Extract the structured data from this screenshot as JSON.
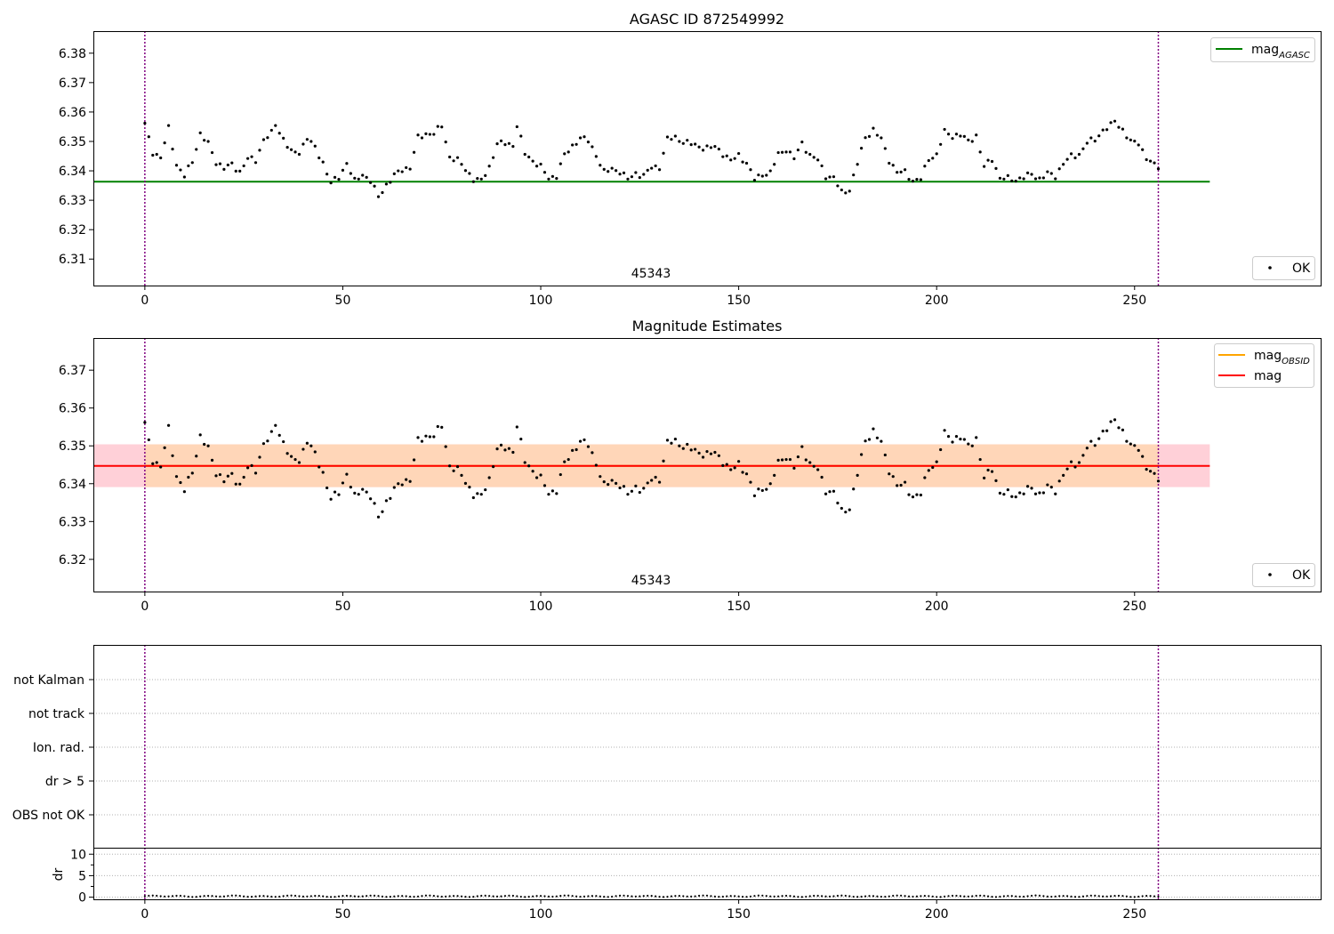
{
  "chart_data": [
    {
      "panel": "top",
      "type": "scatter",
      "title": "AGASC ID 872549992",
      "annotation": "45343",
      "x_range": [
        -13,
        297
      ],
      "y_range": [
        6.301,
        6.3875
      ],
      "x_ticks": [
        0,
        50,
        100,
        150,
        200,
        250
      ],
      "y_ticks": [
        6.31,
        6.32,
        6.33,
        6.34,
        6.35,
        6.36,
        6.37,
        6.38
      ],
      "y_tick_labels": [
        "6.31",
        "6.32",
        "6.33",
        "6.34",
        "6.35",
        "6.36",
        "6.37",
        "6.38"
      ],
      "vlines": [
        0,
        256
      ],
      "hlines": [
        {
          "name": "mag",
          "sub": "AGASC",
          "y": 6.3363,
          "x_range": [
            -13,
            269
          ],
          "color": "#008000"
        }
      ],
      "legend_lines": [
        {
          "name": "mag",
          "sub": "AGASC",
          "color": "#008000",
          "position": "upper right"
        }
      ],
      "legend_points": [
        {
          "name": "OK",
          "color": "#000000",
          "position": "lower right"
        }
      ],
      "series": [
        {
          "name": "OK",
          "x_range": [
            0,
            256
          ],
          "count": 257
        }
      ]
    },
    {
      "panel": "middle",
      "type": "scatter",
      "title": "Magnitude Estimates",
      "annotation": "45343",
      "x_range": [
        -13,
        297
      ],
      "y_range": [
        6.3115,
        6.3785
      ],
      "x_ticks": [
        0,
        50,
        100,
        150,
        200,
        250
      ],
      "y_ticks": [
        6.32,
        6.33,
        6.34,
        6.35,
        6.36,
        6.37
      ],
      "y_tick_labels": [
        "6.32",
        "6.33",
        "6.34",
        "6.35",
        "6.36",
        "6.37"
      ],
      "vlines": [
        0,
        256
      ],
      "bands": [
        {
          "y0": 6.3391,
          "y1": 6.3504,
          "x_range": [
            -13,
            269
          ],
          "color": "#ffd0d8"
        },
        {
          "y0": 6.3391,
          "y1": 6.3504,
          "x_range": [
            0,
            256
          ],
          "color": "#ffd6b8"
        }
      ],
      "hlines": [
        {
          "name": "mag",
          "sub": "OBSID",
          "y": 6.3447,
          "x_range": [
            0,
            256
          ],
          "color": "#ffa500"
        },
        {
          "name": "mag",
          "sub": "",
          "y": 6.3447,
          "x_range": [
            -13,
            269
          ],
          "color": "#ff0000"
        }
      ],
      "legend_lines": [
        {
          "name": "mag",
          "sub": "OBSID",
          "color": "#ffa500",
          "position": "upper right"
        },
        {
          "name": "mag",
          "sub": "",
          "color": "#ff0000",
          "position": "upper right"
        }
      ],
      "legend_points": [
        {
          "name": "OK",
          "color": "#000000",
          "position": "lower right"
        }
      ],
      "series": [
        {
          "name": "OK",
          "x_range": [
            0,
            256
          ],
          "count": 257
        }
      ]
    },
    {
      "panel": "flags",
      "type": "table",
      "x_range": [
        -13,
        297
      ],
      "categories": [
        "not Kalman",
        "not track",
        "Ion. rad.",
        "dr > 5",
        "OBS not OK"
      ],
      "flagged_points": [],
      "vlines": [
        0,
        256
      ],
      "grid": true
    },
    {
      "panel": "dr",
      "type": "scatter",
      "ylabel": "dr",
      "x_range": [
        -13,
        297
      ],
      "y_range": [
        -0.5,
        11.5
      ],
      "x_ticks": [
        0,
        50,
        100,
        150,
        200,
        250
      ],
      "y_ticks": [
        0,
        5,
        10
      ],
      "y_tick_labels": [
        "0",
        "5",
        "10"
      ],
      "vlines": [
        0,
        256
      ],
      "grid": true,
      "series": [
        {
          "name": "dr",
          "x_range": [
            0,
            256
          ],
          "count": 257,
          "typical_value": 0.2
        }
      ]
    }
  ],
  "mag_anchors": [
    [
      0,
      6.3558
    ],
    [
      2,
      6.3463
    ],
    [
      4,
      6.3444
    ],
    [
      6,
      6.3545
    ],
    [
      8,
      6.342
    ],
    [
      10,
      6.3382
    ],
    [
      12,
      6.3433
    ],
    [
      14,
      6.3525
    ],
    [
      16,
      6.3492
    ],
    [
      18,
      6.343
    ],
    [
      20,
      6.3409
    ],
    [
      22,
      6.3421
    ],
    [
      24,
      6.3397
    ],
    [
      26,
      6.3441
    ],
    [
      28,
      6.3436
    ],
    [
      30,
      6.3505
    ],
    [
      32,
      6.3528
    ],
    [
      33,
      6.3558
    ],
    [
      35,
      6.3508
    ],
    [
      37,
      6.3463
    ],
    [
      39,
      6.3463
    ],
    [
      41,
      6.3512
    ],
    [
      43,
      6.3478
    ],
    [
      45,
      6.3428
    ],
    [
      47,
      6.3358
    ],
    [
      49,
      6.3378
    ],
    [
      51,
      6.3426
    ],
    [
      53,
      6.3364
    ],
    [
      55,
      6.3388
    ],
    [
      57,
      6.3366
    ],
    [
      59,
      6.3311
    ],
    [
      61,
      6.3352
    ],
    [
      63,
      6.3384
    ],
    [
      65,
      6.3404
    ],
    [
      67,
      6.3412
    ],
    [
      69,
      6.3512
    ],
    [
      71,
      6.3525
    ],
    [
      73,
      6.3528
    ],
    [
      75,
      6.3552
    ],
    [
      77,
      6.3447
    ],
    [
      79,
      6.3436
    ],
    [
      81,
      6.3405
    ],
    [
      83,
      6.3371
    ],
    [
      85,
      6.3366
    ],
    [
      87,
      6.3413
    ],
    [
      89,
      6.3492
    ],
    [
      91,
      6.3494
    ],
    [
      93,
      6.3487
    ],
    [
      94,
      6.3555
    ],
    [
      96,
      6.3459
    ],
    [
      98,
      6.3434
    ],
    [
      100,
      6.3414
    ],
    [
      102,
      6.3374
    ],
    [
      104,
      6.3384
    ],
    [
      106,
      6.3453
    ],
    [
      108,
      6.3484
    ],
    [
      110,
      6.3512
    ],
    [
      112,
      6.3502
    ],
    [
      114,
      6.3454
    ],
    [
      116,
      6.3395
    ],
    [
      118,
      6.3407
    ],
    [
      120,
      6.3398
    ],
    [
      122,
      6.3371
    ],
    [
      124,
      6.3391
    ],
    [
      126,
      6.3383
    ],
    [
      128,
      6.3412
    ],
    [
      130,
      6.3413
    ],
    [
      132,
      6.3508
    ],
    [
      134,
      6.3513
    ],
    [
      136,
      6.3498
    ],
    [
      138,
      6.3492
    ],
    [
      140,
      6.3482
    ],
    [
      142,
      6.3477
    ],
    [
      144,
      6.3482
    ],
    [
      146,
      6.3459
    ],
    [
      148,
      6.3434
    ],
    [
      150,
      6.3453
    ],
    [
      152,
      6.3426
    ],
    [
      154,
      6.3371
    ],
    [
      156,
      6.3388
    ],
    [
      158,
      6.3393
    ],
    [
      160,
      6.3456
    ],
    [
      162,
      6.3473
    ],
    [
      164,
      6.3442
    ],
    [
      166,
      6.3495
    ],
    [
      168,
      6.3452
    ],
    [
      170,
      6.3437
    ],
    [
      172,
      6.3383
    ],
    [
      174,
      6.3376
    ],
    [
      176,
      6.3327
    ],
    [
      178,
      6.3336
    ],
    [
      180,
      6.3425
    ],
    [
      182,
      6.3514
    ],
    [
      184,
      6.3539
    ],
    [
      186,
      6.3508
    ],
    [
      188,
      6.3437
    ],
    [
      190,
      6.3395
    ],
    [
      192,
      6.3396
    ],
    [
      194,
      6.3366
    ],
    [
      196,
      6.3372
    ],
    [
      198,
      6.3441
    ],
    [
      200,
      6.3454
    ],
    [
      202,
      6.3533
    ],
    [
      204,
      6.3518
    ],
    [
      206,
      6.3522
    ],
    [
      208,
      6.3501
    ],
    [
      210,
      6.3519
    ],
    [
      212,
      6.3413
    ],
    [
      214,
      6.3441
    ],
    [
      216,
      6.3375
    ],
    [
      218,
      6.3374
    ],
    [
      220,
      6.3369
    ],
    [
      222,
      6.3378
    ],
    [
      224,
      6.3389
    ],
    [
      226,
      6.3372
    ],
    [
      228,
      6.3391
    ],
    [
      230,
      6.3382
    ],
    [
      232,
      6.3426
    ],
    [
      234,
      6.3449
    ],
    [
      236,
      6.3456
    ],
    [
      238,
      6.3496
    ],
    [
      240,
      6.3506
    ],
    [
      242,
      6.3538
    ],
    [
      244,
      6.3554
    ],
    [
      245,
      6.3569
    ],
    [
      247,
      6.3539
    ],
    [
      249,
      6.3498
    ],
    [
      251,
      6.3495
    ],
    [
      253,
      6.3444
    ],
    [
      255,
      6.3418
    ],
    [
      256,
      6.3414
    ]
  ]
}
